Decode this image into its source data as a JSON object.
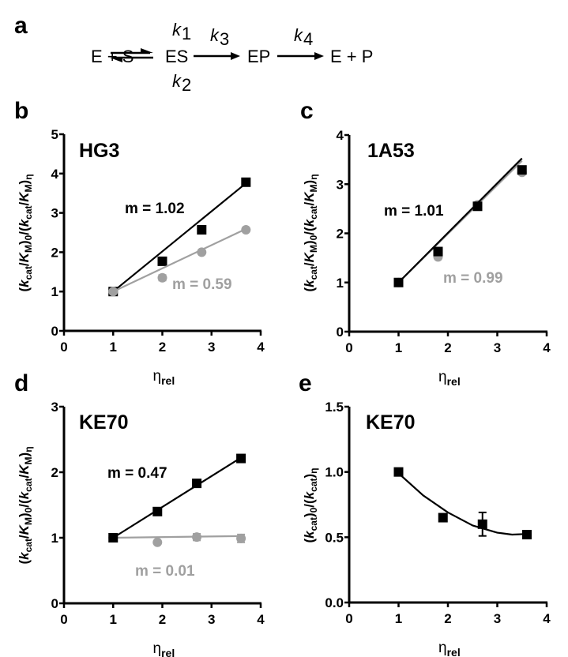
{
  "scheme": {
    "label": "a",
    "species": [
      "E + S",
      "ES",
      "EP",
      "E + P"
    ],
    "rates": {
      "k1": {
        "base": "k",
        "sub": "1"
      },
      "k2": {
        "base": "k",
        "sub": "2"
      },
      "k3": {
        "base": "k",
        "sub": "3"
      },
      "k4": {
        "base": "k",
        "sub": "4"
      }
    }
  },
  "colors": {
    "black_series": "#000000",
    "gray_series": "#a0a0a0"
  },
  "chart_data": [
    {
      "panel": "b",
      "type": "scatter",
      "title": "HG3",
      "xlabel": "η_rel",
      "ylabel": "(k_cat/K_M)_0/(k_cat/K_M)_η",
      "xlim": [
        0,
        4
      ],
      "ylim": [
        0,
        5
      ],
      "xticks": [
        "0",
        "1",
        "2",
        "3",
        "4"
      ],
      "yticks": [
        "0",
        "1",
        "2",
        "3",
        "4",
        "5"
      ],
      "series": [
        {
          "name": "black",
          "color": "#000000",
          "marker": "square",
          "x": [
            1,
            2,
            2.8,
            3.7
          ],
          "y": [
            1,
            1.77,
            2.57,
            3.78
          ],
          "err": [
            0,
            0,
            0,
            0
          ],
          "fit": {
            "type": "linear",
            "slope": 1.02,
            "label": "m = 1.02"
          }
        },
        {
          "name": "gray",
          "color": "#a0a0a0",
          "marker": "circle",
          "x": [
            1,
            2,
            2.8,
            3.7
          ],
          "y": [
            1,
            1.35,
            2.0,
            2.57
          ],
          "err": [
            0,
            0.07,
            0,
            0
          ],
          "fit": {
            "type": "linear",
            "slope": 0.59,
            "label": "m = 0.59"
          }
        }
      ]
    },
    {
      "panel": "c",
      "type": "scatter",
      "title": "1A53",
      "xlabel": "η_rel",
      "ylabel": "(k_cat/K_M)_0/(k_cat/K_M)_η",
      "xlim": [
        0,
        4
      ],
      "ylim": [
        0,
        4
      ],
      "xticks": [
        "0",
        "1",
        "2",
        "3",
        "4"
      ],
      "yticks": [
        "0",
        "1",
        "2",
        "3",
        "4"
      ],
      "series": [
        {
          "name": "gray",
          "color": "#a0a0a0",
          "marker": "circle",
          "x": [
            1,
            1.8,
            2.6,
            3.5
          ],
          "y": [
            1,
            1.52,
            2.58,
            3.24
          ],
          "err": [
            0,
            0,
            0,
            0
          ],
          "fit": {
            "type": "linear",
            "slope": 0.99,
            "label": "m = 0.99"
          }
        },
        {
          "name": "black",
          "color": "#000000",
          "marker": "square",
          "x": [
            1,
            1.8,
            2.6,
            3.5
          ],
          "y": [
            1,
            1.63,
            2.55,
            3.29
          ],
          "err": [
            0,
            0.05,
            0,
            0
          ],
          "fit": {
            "type": "linear",
            "slope": 1.01,
            "label": "m = 1.01"
          }
        }
      ]
    },
    {
      "panel": "d",
      "type": "scatter",
      "title": "KE70",
      "xlabel": "η_rel",
      "ylabel": "(k_cat/K_M)_0/(k_cat/K_M)_η",
      "xlim": [
        0,
        4
      ],
      "ylim": [
        0,
        3
      ],
      "xticks": [
        "0",
        "1",
        "2",
        "3",
        "4"
      ],
      "yticks": [
        "0",
        "1",
        "2",
        "3"
      ],
      "series": [
        {
          "name": "gray",
          "color": "#a0a0a0",
          "marker": "circle",
          "x": [
            1,
            1.9,
            2.7,
            3.6
          ],
          "y": [
            1,
            0.93,
            1.01,
            0.99
          ],
          "err": [
            0,
            0,
            0.05,
            0.06
          ],
          "fit": {
            "type": "linear",
            "slope": 0.01,
            "label": "m = 0.01"
          }
        },
        {
          "name": "black",
          "color": "#000000",
          "marker": "square",
          "x": [
            1,
            1.9,
            2.7,
            3.6
          ],
          "y": [
            1,
            1.4,
            1.83,
            2.21
          ],
          "err": [
            0,
            0,
            0.05,
            0
          ],
          "fit": {
            "type": "linear",
            "slope": 0.47,
            "label": "m = 0.47"
          }
        }
      ]
    },
    {
      "panel": "e",
      "type": "scatter",
      "title": "KE70",
      "xlabel": "η_rel",
      "ylabel": "(k_cat)_0/(k_cat)_η",
      "xlim": [
        0,
        4
      ],
      "ylim": [
        0,
        1.5
      ],
      "xticks": [
        "0",
        "1",
        "2",
        "3",
        "4"
      ],
      "yticks": [
        "0.0",
        "0.5",
        "1.0",
        "1.5"
      ],
      "series": [
        {
          "name": "black",
          "color": "#000000",
          "marker": "square",
          "x": [
            1,
            1.9,
            2.7,
            3.6
          ],
          "y": [
            1.0,
            0.65,
            0.6,
            0.52
          ],
          "err": [
            0,
            0,
            0.09,
            0
          ],
          "fit": {
            "type": "quadratic",
            "points_x": [
              1,
              1.5,
              2,
              2.5,
              3,
              3.3,
              3.6
            ],
            "points_y": [
              0.99,
              0.82,
              0.69,
              0.59,
              0.535,
              0.52,
              0.525
            ]
          }
        }
      ]
    }
  ]
}
